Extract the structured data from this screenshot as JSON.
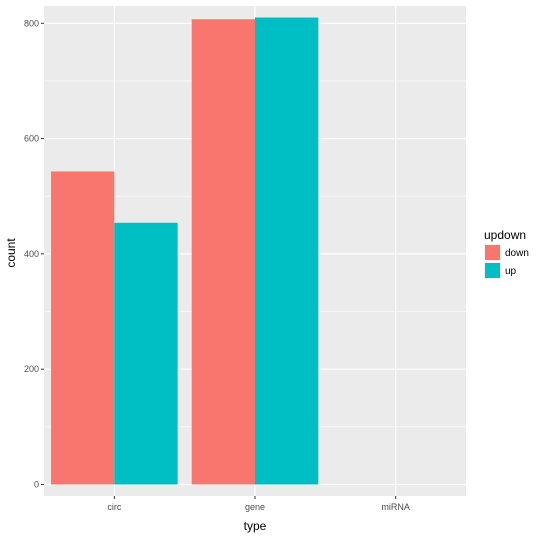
{
  "chart_data": {
    "type": "bar",
    "categories": [
      "circ",
      "gene",
      "miRNA"
    ],
    "series": [
      {
        "name": "down",
        "color": "#F8766D",
        "values": [
          543,
          807,
          0
        ]
      },
      {
        "name": "up",
        "color": "#00BFC4",
        "values": [
          454,
          810,
          0
        ]
      }
    ],
    "yticks": [
      0,
      200,
      400,
      600,
      800
    ],
    "ylim": [
      -20,
      830
    ],
    "xlabel": "type",
    "ylabel": "count",
    "legend": {
      "title": "updown",
      "position": "right"
    },
    "grid": true,
    "panel_background": "#EBEBEB",
    "grid_color": "#FFFFFF"
  }
}
